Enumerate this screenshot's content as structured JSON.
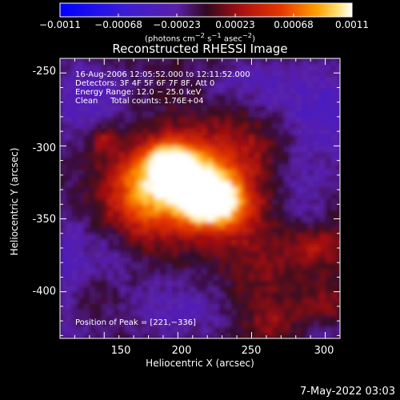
{
  "colorbar": {
    "ticks": [
      "−0.0011",
      "−0.00068",
      "−0.00023",
      "0.00023",
      "0.00068",
      "0.0011"
    ],
    "units_prefix": "(photons cm",
    "units_mid": " s",
    "units_mid2": " asec",
    "units_suffix": ")",
    "sup_neg2": "−2",
    "sup_neg1": "−1"
  },
  "chart_data": {
    "type": "heatmap",
    "title": "Reconstructed RHESSI Image",
    "xlabel": "Heliocentric X (arcsec)",
    "ylabel": "Heliocentric Y (arcsec)",
    "xlim": [
      120,
      310
    ],
    "ylim": [
      -432,
      -240
    ],
    "xticks": [
      150,
      200,
      250,
      300
    ],
    "yticks": [
      -250,
      -300,
      -350,
      -400
    ],
    "value_range": [
      -0.0011,
      0.0011
    ],
    "annotations": [
      "16-Aug-2006 12:05:52.000 to 12:11:52.000",
      "Detectors: 3F 4F 5F 6F 7F 8F, Att 0",
      "Energy Range: 12.0 − 25.0 keV",
      "Clean     Total counts: 1.76E+04"
    ],
    "peak_label": "Position of Peak = [221,−336]",
    "peak": [
      221,
      -336
    ]
  },
  "timestamp": "7-May-2022 03:03"
}
